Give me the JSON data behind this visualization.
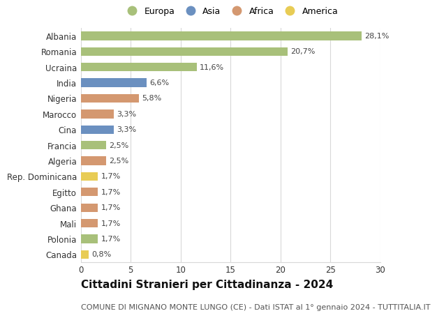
{
  "title": "Cittadini Stranieri per Cittadinanza - 2024",
  "subtitle": "COMUNE DI MIGNANO MONTE LUNGO (CE) - Dati ISTAT al 1° gennaio 2024 - TUTTITALIA.IT",
  "categories": [
    "Albania",
    "Romania",
    "Ucraina",
    "India",
    "Nigeria",
    "Marocco",
    "Cina",
    "Francia",
    "Algeria",
    "Rep. Dominicana",
    "Egitto",
    "Ghana",
    "Mali",
    "Polonia",
    "Canada"
  ],
  "values": [
    28.1,
    20.7,
    11.6,
    6.6,
    5.8,
    3.3,
    3.3,
    2.5,
    2.5,
    1.7,
    1.7,
    1.7,
    1.7,
    1.7,
    0.8
  ],
  "continents": [
    "Europa",
    "Europa",
    "Europa",
    "Asia",
    "Africa",
    "Africa",
    "Asia",
    "Europa",
    "Africa",
    "America",
    "Africa",
    "Africa",
    "Africa",
    "Europa",
    "America"
  ],
  "continent_colors": {
    "Europa": "#a8c07a",
    "Asia": "#6b90c0",
    "Africa": "#d49870",
    "America": "#e8cc55"
  },
  "legend_order": [
    "Europa",
    "Asia",
    "Africa",
    "America"
  ],
  "xlim": [
    0,
    30
  ],
  "xticks": [
    0,
    5,
    10,
    15,
    20,
    25,
    30
  ],
  "bar_height": 0.55,
  "value_label_fontsize": 8,
  "ytick_fontsize": 8.5,
  "xtick_fontsize": 8.5,
  "title_fontsize": 11,
  "subtitle_fontsize": 8,
  "background_color": "#ffffff",
  "grid_color": "#d8d8d8"
}
